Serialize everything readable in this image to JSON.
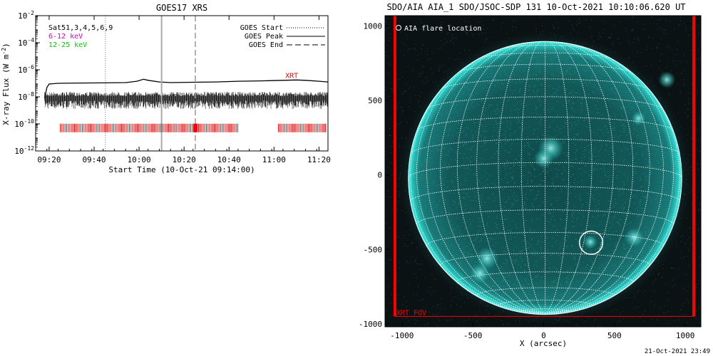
{
  "colors": {
    "goes_flux": "#000000",
    "xrt_marks": "#ff0000",
    "legend_magenta": "#d000d0",
    "legend_green": "#00d000",
    "sun_disk": "#1aa7a0",
    "grid": "#ffffff",
    "fov": "#ff0000",
    "background_dark": "#0b1214"
  },
  "footer_timestamp": "21-Oct-2021 23:49",
  "chart_data": [
    {
      "type": "line",
      "title": "GOES17 XRS",
      "xlabel": "Start Time (10-Oct-21 09:14:00)",
      "ylabel": "X-ray Flux (W m",
      "ylabel_superscript": "-2",
      "ylabel_close": ")",
      "x_unit": "minutes since 09:14",
      "xlim": [
        0,
        130
      ],
      "ylim_log10": [
        -12,
        -2
      ],
      "yscale": "log",
      "x_ticks": [
        {
          "value": 6,
          "label": "09:20"
        },
        {
          "value": 26,
          "label": "09:40"
        },
        {
          "value": 46,
          "label": "10:00"
        },
        {
          "value": 66,
          "label": "10:20"
        },
        {
          "value": 86,
          "label": "10:40"
        },
        {
          "value": 106,
          "label": "11:00"
        },
        {
          "value": 126,
          "label": "11:20"
        }
      ],
      "y_ticks": [
        {
          "value": -12,
          "base": "10",
          "exp": "-12"
        },
        {
          "value": -10,
          "base": "10",
          "exp": "-10"
        },
        {
          "value": -8,
          "base": "10",
          "exp": "-8"
        },
        {
          "value": -6,
          "base": "10",
          "exp": "-6"
        },
        {
          "value": -4,
          "base": "10",
          "exp": "-4"
        },
        {
          "value": -2,
          "base": "10",
          "exp": "-2"
        }
      ],
      "legend_left": [
        {
          "text": "Sat51,3,4,5,6,9",
          "color": "#000000"
        },
        {
          "text": "6-12 keV",
          "color": "#d000d0"
        },
        {
          "text": "12-25 keV",
          "color": "#00d000"
        }
      ],
      "legend_right": [
        {
          "text": "GOES Start",
          "style": "dotted"
        },
        {
          "text": "GOES Peak",
          "style": "solid"
        },
        {
          "text": "GOES End",
          "style": "dashed"
        }
      ],
      "series_upper": {
        "x": [
          4,
          5,
          6,
          10,
          20,
          30,
          40,
          45,
          48,
          50,
          55,
          60,
          70,
          80,
          90,
          100,
          110,
          116,
          120,
          126,
          130
        ],
        "log_y": [
          -8.1,
          -7.3,
          -7.05,
          -7.0,
          -6.98,
          -6.97,
          -6.95,
          -6.85,
          -6.7,
          -6.78,
          -6.9,
          -6.95,
          -6.92,
          -6.9,
          -6.85,
          -6.82,
          -6.78,
          -6.75,
          -6.78,
          -6.85,
          -6.9
        ]
      },
      "series_lower_band": {
        "x_start": 4,
        "x_end": 130,
        "log_y_top": -7.8,
        "log_y_bottom": -8.9
      },
      "goes_start": 31,
      "goes_peak": 56,
      "goes_end": 71,
      "xrt_label": "XRT",
      "xrt_label_x": 111,
      "xrt_label_log_y": -6.6,
      "xrt_coverage_log_y": -10.3,
      "xrt_coverage_segments": [
        [
          11,
          62
        ],
        [
          62,
          90
        ],
        [
          108,
          129
        ]
      ],
      "xrt_highlight": 71
    },
    {
      "type": "scatter",
      "title": "SDO/AIA AIA_1 SDO/JSOC-SDP 131 10-Oct-2021 10:10:06.620 UT",
      "xlabel": "X (arcsec)",
      "ylabel": "",
      "xlim": [
        -1120,
        1110
      ],
      "ylim": [
        -1020,
        1070
      ],
      "x_ticks": [
        -1000,
        -500,
        0,
        500,
        1000
      ],
      "y_ticks": [
        -1000,
        -500,
        0,
        500,
        1000
      ],
      "solar_radius_arcsec": 965,
      "sun_center": [
        10,
        -20
      ],
      "grid_spacing_deg": 10,
      "b0_deg": -6.5,
      "legend_text": "AIA flare location",
      "flare_location": {
        "x": 335,
        "y": -455,
        "radius_arcsec": 82
      },
      "xrt_fov_label": "XRT FOV",
      "xrt_fov": {
        "x0": -1050,
        "x1": 1060,
        "y0": -950,
        "y1": 1070
      },
      "active_regions": [
        {
          "x": 50,
          "y": 180,
          "r": 90
        },
        {
          "x": 0,
          "y": 110,
          "r": 70
        },
        {
          "x": -400,
          "y": -560,
          "r": 80
        },
        {
          "x": -450,
          "y": -660,
          "r": 70
        },
        {
          "x": 640,
          "y": -420,
          "r": 70
        },
        {
          "x": 670,
          "y": 380,
          "r": 50
        },
        {
          "x": 870,
          "y": 640,
          "r": 60
        },
        {
          "x": 330,
          "y": -450,
          "r": 50
        }
      ]
    }
  ]
}
